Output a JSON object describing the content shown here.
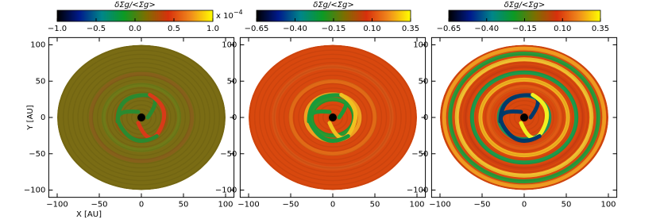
{
  "chart_data": [
    {
      "type": "image",
      "colorbar_label": "δΣg/<Σg>",
      "clim": [
        -1,
        1
      ],
      "cticks": [
        {
          "value": -1,
          "label": "−1.0"
        },
        {
          "value": -0.5,
          "label": "−0.5"
        },
        {
          "value": 0,
          "label": "0.0"
        },
        0.5,
        {
          "value": 1,
          "label": "1.0"
        }
      ],
      "colorbar_scale": {
        "base": "x 10",
        "power": "−4"
      },
      "colormap": [
        "#000000",
        "#001a8c",
        "#00868a",
        "#0c9a24",
        "#7d6e00",
        "#d8300c",
        "#f08a1c",
        "#ffff00"
      ],
      "xlim": [
        -110,
        110
      ],
      "ylim": [
        -110,
        110
      ],
      "xticks": [
        {
          "value": -100,
          "label": "−100"
        },
        {
          "value": -50,
          "label": "−50"
        },
        0,
        50,
        100
      ],
      "yticks": [
        {
          "value": -100,
          "label": "−100"
        },
        {
          "value": -50,
          "label": "−50"
        },
        0,
        50,
        100
      ],
      "xlabel": "X [AU]",
      "ylabel": "Y [AU]"
    },
    {
      "type": "image",
      "colorbar_label": "δΣg/<Σg>",
      "clim": [
        -0.65,
        0.35
      ],
      "cticks": [
        {
          "value": -0.65,
          "label": "−0.65"
        },
        {
          "value": -0.4,
          "label": "−0.40"
        },
        {
          "value": -0.15,
          "label": "−0.15"
        },
        {
          "value": 0.1,
          "label": "0.10"
        },
        0.35
      ],
      "colormap": [
        "#000000",
        "#001a8c",
        "#00868a",
        "#0c9a24",
        "#7d6e00",
        "#d8300c",
        "#f08a1c",
        "#ffff00"
      ],
      "xlim": [
        -110,
        110
      ],
      "ylim": [
        -110,
        110
      ],
      "xticks": [
        {
          "value": -100,
          "label": "−100"
        },
        {
          "value": -50,
          "label": "−50"
        },
        0,
        50,
        100
      ],
      "yticks": [
        {
          "value": -100,
          "label": "−100"
        },
        {
          "value": -50,
          "label": "−50"
        },
        0,
        50,
        100
      ]
    },
    {
      "type": "image",
      "colorbar_label": "δΣg/<Σg>",
      "clim": [
        -0.65,
        0.35
      ],
      "cticks": [
        {
          "value": -0.65,
          "label": "−0.65"
        },
        {
          "value": -0.4,
          "label": "−0.40"
        },
        {
          "value": -0.15,
          "label": "−0.15"
        },
        {
          "value": 0.1,
          "label": "0.10"
        },
        0.35
      ],
      "colormap": [
        "#000000",
        "#001a8c",
        "#00868a",
        "#0c9a24",
        "#7d6e00",
        "#d8300c",
        "#f08a1c",
        "#ffff00"
      ],
      "xlim": [
        -110,
        110
      ],
      "ylim": [
        -110,
        110
      ],
      "xticks": [
        {
          "value": -100,
          "label": "−100"
        },
        {
          "value": -50,
          "label": "−50"
        },
        0,
        50,
        100
      ],
      "yticks": [
        {
          "value": -100,
          "label": "−100"
        },
        {
          "value": -50,
          "label": "−50"
        },
        0,
        50,
        100
      ]
    }
  ]
}
